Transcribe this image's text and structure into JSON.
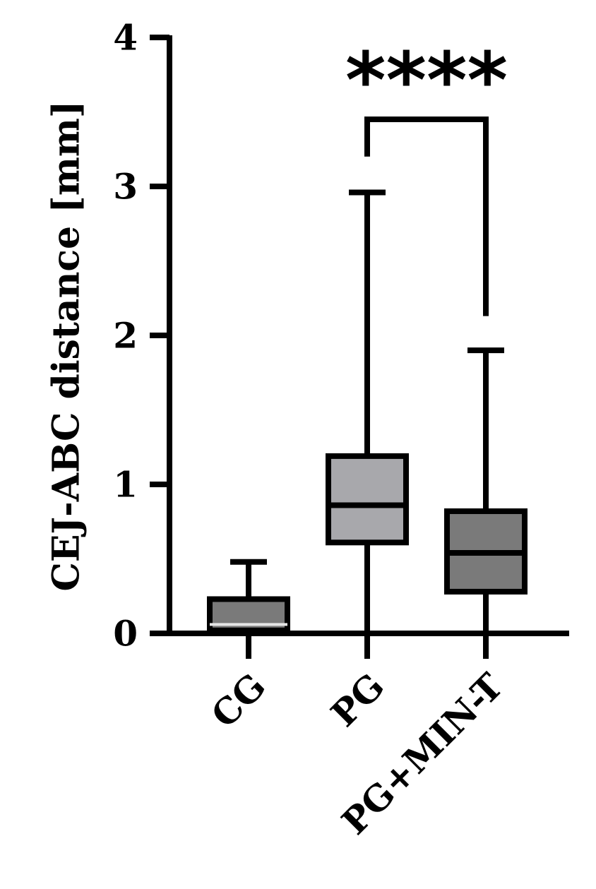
{
  "chart_data": {
    "type": "boxplot",
    "ylabel": "CEJ-ABC distance [mm]",
    "xlabel": "",
    "ylim": [
      0,
      4
    ],
    "yticks": [
      "0",
      "1",
      "2",
      "3",
      "4"
    ],
    "categories": [
      "CG",
      "PG",
      "PG+MIN-T"
    ],
    "groups": [
      {
        "label": "CG",
        "min": 0.0,
        "q1": 0.02,
        "median": 0.06,
        "q3": 0.23,
        "max": 0.48,
        "fill": "#7a7a7a"
      },
      {
        "label": "PG",
        "min": 0.0,
        "q1": 0.61,
        "median": 0.86,
        "q3": 1.19,
        "max": 2.96,
        "fill": "#a8a8ac"
      },
      {
        "label": "PG+MIN-T",
        "min": 0.0,
        "q1": 0.28,
        "median": 0.54,
        "q3": 0.82,
        "max": 1.9,
        "fill": "#7a7a7a"
      }
    ],
    "significance": {
      "from": "PG",
      "to": "PG+MIN-T",
      "label": "****",
      "bracket_y": 3.45,
      "left_drop_to": 3.2,
      "right_drop_to": 2.13
    },
    "grid": false
  }
}
